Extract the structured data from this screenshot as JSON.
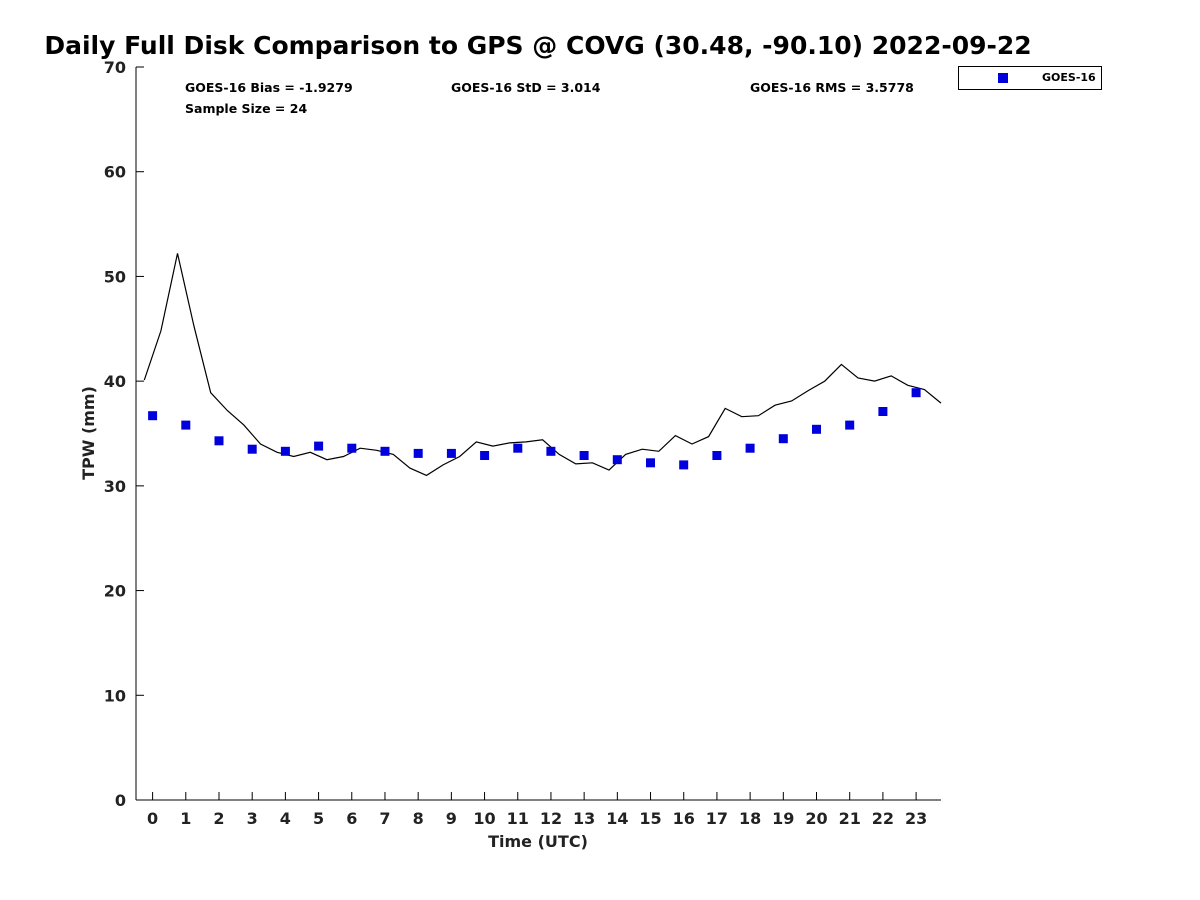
{
  "chart_data": {
    "type": "scatter",
    "title": "Daily Full Disk Comparison to GPS @ COVG (30.48, -90.10) 2022-09-22",
    "xlabel": "Time (UTC)",
    "ylabel": "TPW (mm)",
    "xlim": [
      -0.5,
      23.75
    ],
    "ylim": [
      0,
      70
    ],
    "x_ticks": [
      0,
      1,
      2,
      3,
      4,
      5,
      6,
      7,
      8,
      9,
      10,
      11,
      12,
      13,
      14,
      15,
      16,
      17,
      18,
      19,
      20,
      21,
      22,
      23
    ],
    "y_ticks": [
      0,
      10,
      20,
      30,
      40,
      50,
      60,
      70
    ],
    "grid": false,
    "legend_position": "top-right",
    "stats": {
      "bias": "GOES-16 Bias = -1.9279",
      "std": "GOES-16 StD = 3.014",
      "rms": "GOES-16 RMS = 3.5778",
      "sample": "Sample Size = 24"
    },
    "series": [
      {
        "name": "GOES-16",
        "kind": "markers",
        "color": "#0000dd",
        "x": [
          0,
          1,
          2,
          3,
          4,
          5,
          6,
          7,
          8,
          9,
          10,
          11,
          12,
          13,
          14,
          15,
          16,
          17,
          18,
          19,
          20,
          21,
          22,
          23
        ],
        "y": [
          36.7,
          35.8,
          34.3,
          33.5,
          33.3,
          33.8,
          33.6,
          33.3,
          33.1,
          33.1,
          32.9,
          33.6,
          33.3,
          32.9,
          32.5,
          32.2,
          32.0,
          32.9,
          33.6,
          34.5,
          35.4,
          35.8,
          37.1,
          38.9
        ]
      },
      {
        "kind": "line",
        "color": "#000000",
        "x": [
          -0.25,
          0.25,
          0.75,
          1.25,
          1.75,
          2.25,
          2.75,
          3.25,
          3.75,
          4.25,
          4.75,
          5.25,
          5.75,
          6.25,
          6.75,
          7.25,
          7.75,
          8.25,
          8.75,
          9.25,
          9.75,
          10.25,
          10.75,
          11.25,
          11.75,
          12.25,
          12.75,
          13.25,
          13.75,
          14.25,
          14.75,
          15.25,
          15.75,
          16.25,
          16.75,
          17.25,
          17.75,
          18.25,
          18.75,
          19.25,
          19.75,
          20.25,
          20.75,
          21.25,
          21.75,
          22.25,
          22.75,
          23.25,
          23.75
        ],
        "y": [
          40.1,
          44.8,
          52.2,
          45.2,
          38.9,
          37.2,
          35.8,
          34.0,
          33.2,
          32.8,
          33.2,
          32.5,
          32.8,
          33.6,
          33.4,
          33.0,
          31.7,
          31.0,
          32.0,
          32.8,
          34.2,
          33.8,
          34.1,
          34.2,
          34.4,
          33.0,
          32.1,
          32.2,
          31.5,
          33.0,
          33.5,
          33.3,
          34.8,
          34.0,
          34.7,
          37.4,
          36.6,
          36.7,
          37.7,
          38.1,
          39.1,
          40.0,
          41.6,
          40.3,
          40.0,
          40.5,
          39.6,
          39.2,
          37.9
        ]
      }
    ]
  }
}
